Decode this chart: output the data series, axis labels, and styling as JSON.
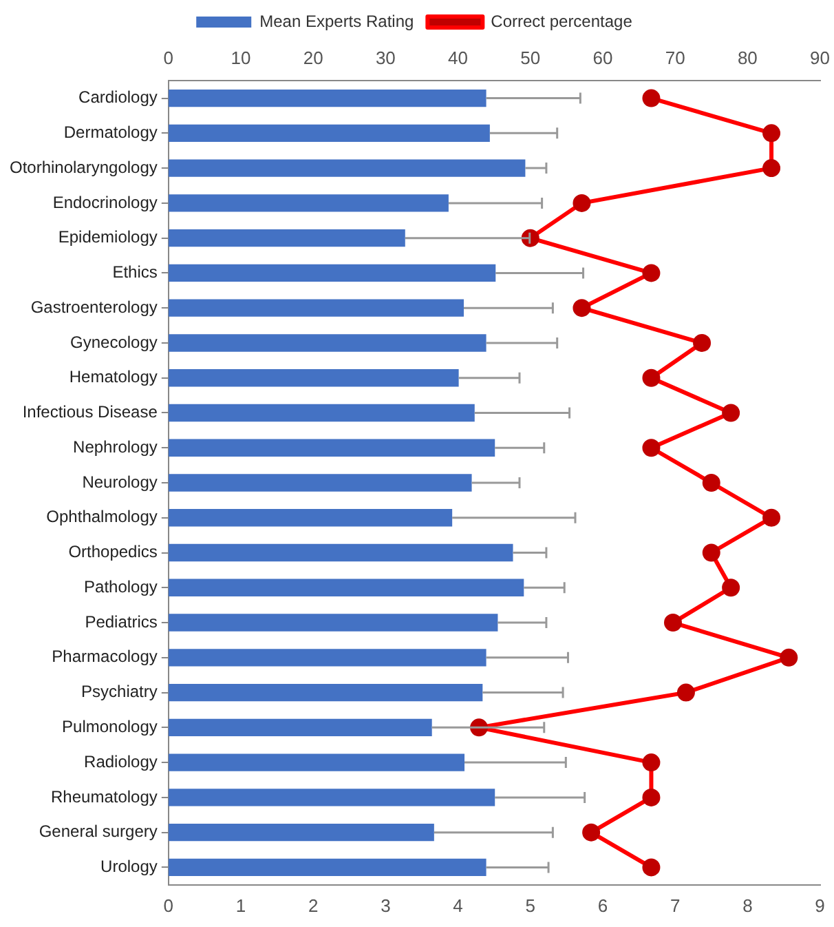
{
  "chart_data": {
    "type": "bar",
    "orientation": "horizontal",
    "legend": "top",
    "grid": false,
    "marker": "circle",
    "categories": [
      "Cardiology",
      "Dermatology",
      "Otorhinolaryngology",
      "Endocrinology",
      "Epidemiology",
      "Ethics",
      "Gastroenterology",
      "Gynecology",
      "Hematology",
      "Infectious Disease",
      "Nephrology",
      "Neurology",
      "Ophthalmology",
      "Orthopedics",
      "Pathology",
      "Pediatrics",
      "Pharmacology",
      "Psychiatry",
      "Pulmonology",
      "Radiology",
      "Rheumatology",
      "General surgery",
      "Urology"
    ],
    "xlim": [
      0,
      9
    ],
    "xticks": [
      0,
      1,
      2,
      3,
      4,
      5,
      6,
      7,
      8,
      9
    ],
    "x2lim": [
      0,
      90
    ],
    "x2ticks": [
      0,
      10,
      20,
      30,
      40,
      50,
      60,
      70,
      80,
      90
    ],
    "series": [
      {
        "name": "Mean Experts Rating",
        "color": "#4472c4",
        "values": [
          4.39,
          4.44,
          4.93,
          3.87,
          3.27,
          4.52,
          4.08,
          4.39,
          4.01,
          4.23,
          4.51,
          4.19,
          3.92,
          4.76,
          4.91,
          4.55,
          4.39,
          4.34,
          3.64,
          4.09,
          4.51,
          3.67,
          4.39
        ],
        "errors": [
          1.3,
          0.93,
          0.29,
          1.29,
          1.72,
          1.21,
          1.23,
          0.98,
          0.84,
          1.31,
          0.68,
          0.66,
          1.7,
          0.46,
          0.56,
          0.67,
          1.13,
          1.11,
          1.55,
          1.4,
          1.24,
          1.64,
          0.86
        ]
      },
      {
        "name": "Correct percentage",
        "type": "line",
        "axis": "x2",
        "color": "#ff0000",
        "values": [
          66.7,
          83.3,
          83.3,
          57.1,
          50,
          66.7,
          57.1,
          73.7,
          66.7,
          77.7,
          66.7,
          75,
          83.3,
          75,
          77.7,
          69.7,
          85.7,
          71.5,
          42.9,
          66.7,
          66.7,
          58.4,
          66.7
        ]
      }
    ]
  }
}
